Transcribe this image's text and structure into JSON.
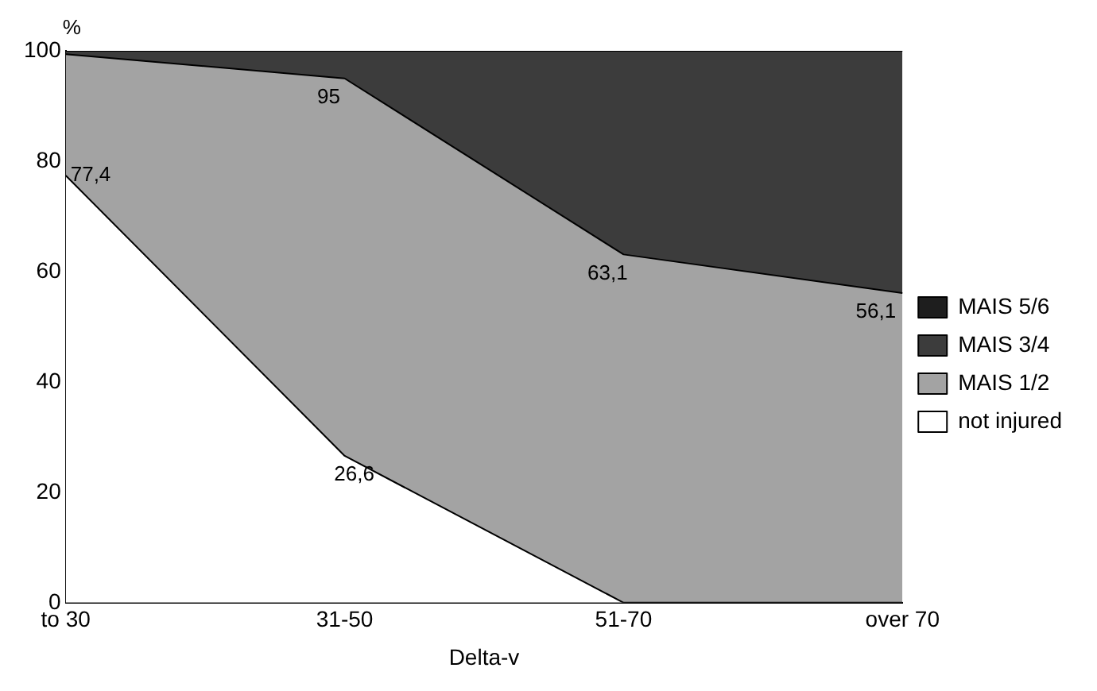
{
  "chart_data": {
    "type": "area",
    "xlabel": "Delta-v",
    "ylabel": "%",
    "categories": [
      "to 30",
      "31-50",
      "51-70",
      "over 70"
    ],
    "ylim": [
      0,
      100
    ],
    "yticks": [
      0,
      20,
      40,
      60,
      80,
      100
    ],
    "grid": false,
    "legend": "right",
    "series": [
      {
        "name": "not injured",
        "color": "#ffffff",
        "values": [
          77.4,
          26.6,
          0,
          0
        ],
        "value_labels": [
          "77,4",
          "26,6",
          null,
          null
        ]
      },
      {
        "name": "MAIS 1/2",
        "color": "#a3a3a3",
        "values": [
          99.4,
          95,
          63.1,
          56.1
        ],
        "value_labels": [
          null,
          "95",
          "63,1",
          "56,1"
        ]
      },
      {
        "name": "MAIS 3/4",
        "color": "#3c3c3c",
        "values": [
          100,
          100,
          100,
          100
        ]
      },
      {
        "name": "MAIS 5/6",
        "color": "#1e1e1e",
        "values": [
          null,
          null,
          null,
          null
        ]
      }
    ]
  }
}
